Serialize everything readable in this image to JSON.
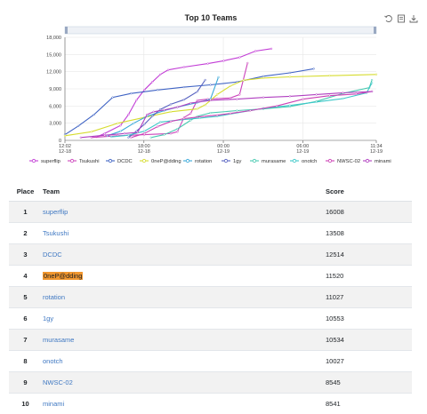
{
  "chart_data": {
    "type": "line",
    "title": "Top 10 Teams",
    "ylim": [
      0,
      18000
    ],
    "y_ticks": [
      "0",
      "3,000",
      "6,000",
      "9,000",
      "12,000",
      "15,000",
      "18,000"
    ],
    "x_ticks": [
      {
        "time": "12:02",
        "date": "12-18",
        "h": 0
      },
      {
        "time": "18:00",
        "date": "12-18",
        "h": 5.97
      },
      {
        "time": "00:00",
        "date": "12-19",
        "h": 11.97
      },
      {
        "time": "06:00",
        "date": "12-19",
        "h": 17.97
      },
      {
        "time": "11:34",
        "date": "12-19",
        "h": 23.53
      }
    ],
    "series": [
      {
        "name": "superflip",
        "color": "#c23cd6",
        "points": [
          [
            2.4,
            600
          ],
          [
            3,
            1200
          ],
          [
            4.2,
            2600
          ],
          [
            4.8,
            4500
          ],
          [
            5.4,
            7000
          ],
          [
            6,
            8800
          ],
          [
            6.6,
            10200
          ],
          [
            7.2,
            11500
          ],
          [
            7.8,
            12300
          ],
          [
            9,
            12800
          ],
          [
            10.8,
            13400
          ],
          [
            12,
            13900
          ],
          [
            13.2,
            14500
          ],
          [
            14.4,
            15600
          ],
          [
            15.6,
            16008
          ]
        ]
      },
      {
        "name": "Tsukushi",
        "color": "#cc44bb",
        "points": [
          [
            2,
            500
          ],
          [
            4,
            800
          ],
          [
            6,
            1000
          ],
          [
            8,
            1200
          ],
          [
            8.5,
            1500
          ],
          [
            9,
            4000
          ],
          [
            9.5,
            4700
          ],
          [
            10,
            7000
          ],
          [
            10.8,
            7200
          ],
          [
            11.5,
            7300
          ],
          [
            12.5,
            7400
          ],
          [
            13.2,
            8000
          ],
          [
            13.8,
            13508
          ]
        ]
      },
      {
        "name": "DCDC",
        "color": "#3f63c4",
        "points": [
          [
            0,
            1000
          ],
          [
            1,
            2500
          ],
          [
            2.2,
            4500
          ],
          [
            3.6,
            7500
          ],
          [
            5,
            8200
          ],
          [
            7,
            8800
          ],
          [
            9,
            9300
          ],
          [
            11,
            9700
          ],
          [
            13,
            10200
          ],
          [
            15,
            11200
          ],
          [
            17,
            11800
          ],
          [
            18.8,
            12514
          ]
        ]
      },
      {
        "name": "0neP@dding",
        "color": "#d6dc2f",
        "points": [
          [
            0,
            800
          ],
          [
            2,
            1500
          ],
          [
            4,
            3000
          ],
          [
            6,
            4000
          ],
          [
            8,
            5000
          ],
          [
            10,
            5500
          ],
          [
            10.6,
            6200
          ],
          [
            11.5,
            8000
          ],
          [
            12.5,
            9500
          ],
          [
            13.5,
            10500
          ],
          [
            15,
            10900
          ],
          [
            17,
            11100
          ],
          [
            20,
            11300
          ],
          [
            23.53,
            11520
          ]
        ]
      },
      {
        "name": "rotation",
        "color": "#39a8d9",
        "points": [
          [
            3.2,
            800
          ],
          [
            4.2,
            1600
          ],
          [
            5.2,
            3000
          ],
          [
            6.2,
            4200
          ],
          [
            7.5,
            5200
          ],
          [
            8.5,
            5800
          ],
          [
            10,
            6600
          ],
          [
            11,
            7200
          ],
          [
            11.6,
            11027
          ]
        ]
      },
      {
        "name": "1gy",
        "color": "#5560c0",
        "points": [
          [
            4.8,
            500
          ],
          [
            5.4,
            1600
          ],
          [
            6,
            2800
          ],
          [
            6.6,
            4200
          ],
          [
            7.2,
            5400
          ],
          [
            8,
            6300
          ],
          [
            9,
            7100
          ],
          [
            10,
            8500
          ],
          [
            10.6,
            10553
          ]
        ]
      },
      {
        "name": "murasame",
        "color": "#48c9b0",
        "points": [
          [
            6.5,
            500
          ],
          [
            7.5,
            1000
          ],
          [
            8.5,
            2000
          ],
          [
            9.5,
            3500
          ],
          [
            10,
            4200
          ],
          [
            11,
            4800
          ],
          [
            13,
            5200
          ],
          [
            15,
            5500
          ],
          [
            17,
            5900
          ],
          [
            19,
            6800
          ],
          [
            21,
            8200
          ],
          [
            23,
            9200
          ],
          [
            23.2,
            10534
          ]
        ]
      },
      {
        "name": "onotch",
        "color": "#3cc8c8",
        "points": [
          [
            3.5,
            600
          ],
          [
            4.8,
            900
          ],
          [
            6,
            1600
          ],
          [
            7.2,
            3200
          ],
          [
            8.8,
            3600
          ],
          [
            10.2,
            3900
          ],
          [
            11.5,
            4200
          ],
          [
            13,
            4800
          ],
          [
            15,
            5600
          ],
          [
            17,
            6100
          ],
          [
            19,
            6700
          ],
          [
            21,
            7300
          ],
          [
            22.8,
            8300
          ],
          [
            23.2,
            10027
          ]
        ]
      },
      {
        "name": "NWSC-02",
        "color": "#cc3fb5",
        "points": [
          [
            5,
            500
          ],
          [
            6,
            1200
          ],
          [
            7,
            2400
          ],
          [
            8,
            3300
          ],
          [
            9,
            3800
          ],
          [
            10.5,
            4200
          ],
          [
            11.5,
            4400
          ],
          [
            12.5,
            4700
          ],
          [
            14,
            5200
          ],
          [
            16,
            6000
          ],
          [
            18,
            7200
          ],
          [
            20,
            7800
          ],
          [
            22,
            8100
          ],
          [
            23.2,
            8545
          ]
        ]
      },
      {
        "name": "minami",
        "color": "#b03ec0",
        "points": [
          [
            1.2,
            500
          ],
          [
            3,
            900
          ],
          [
            4.5,
            1200
          ],
          [
            5.5,
            1400
          ],
          [
            6.2,
            4500
          ],
          [
            6.7,
            5000
          ],
          [
            7.5,
            5300
          ],
          [
            8.5,
            5800
          ],
          [
            9.5,
            6500
          ],
          [
            11,
            7000
          ],
          [
            13,
            7200
          ],
          [
            15,
            7500
          ],
          [
            17,
            7700
          ],
          [
            19,
            8000
          ],
          [
            21,
            8300
          ],
          [
            23.2,
            8541
          ]
        ]
      }
    ]
  },
  "table": {
    "headers": {
      "place": "Place",
      "team": "Team",
      "score": "Score"
    },
    "rows": [
      {
        "place": "1",
        "team": "superflip",
        "score": "16008"
      },
      {
        "place": "2",
        "team": "Tsukushi",
        "score": "13508"
      },
      {
        "place": "3",
        "team": "DCDC",
        "score": "12514"
      },
      {
        "place": "4",
        "team": "0neP@dding",
        "score": "11520",
        "highlight": true
      },
      {
        "place": "5",
        "team": "rotation",
        "score": "11027"
      },
      {
        "place": "6",
        "team": "1gy",
        "score": "10553"
      },
      {
        "place": "7",
        "team": "murasame",
        "score": "10534"
      },
      {
        "place": "8",
        "team": "onotch",
        "score": "10027"
      },
      {
        "place": "9",
        "team": "NWSC-02",
        "score": "8545"
      },
      {
        "place": "10",
        "team": "minami",
        "score": "8541"
      }
    ]
  },
  "toolbox": {
    "icons": [
      "restore-icon",
      "data-view-icon",
      "save-image-icon"
    ]
  },
  "colors": {
    "link": "#3f78c2",
    "highlight": "#f0962e",
    "row_stripe": "#f2f2f2"
  }
}
